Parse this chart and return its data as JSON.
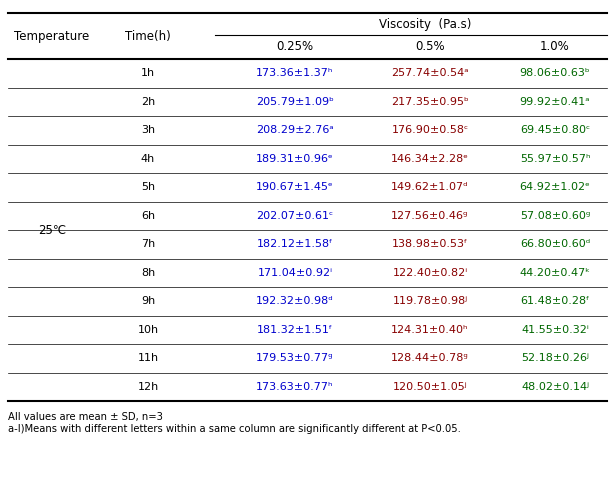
{
  "title_col1": "Temperature",
  "title_col2": "Time(h)",
  "viscosity_header": "Viscosity  (Pa.s)",
  "sub_headers": [
    "0.25%",
    "0.5%",
    "1.0%"
  ],
  "temp_label": "25℃",
  "time_labels": [
    "1h",
    "2h",
    "3h",
    "4h",
    "5h",
    "6h",
    "7h",
    "8h",
    "9h",
    "10h",
    "11h",
    "12h"
  ],
  "col_025": [
    "173.36±1.37ʰ",
    "205.79±1.09ᵇ",
    "208.29±2.76ᵃ",
    "189.31±0.96ᵉ",
    "190.67±1.45ᵉ",
    "202.07±0.61ᶜ",
    "182.12±1.58ᶠ",
    "171.04±0.92ⁱ",
    "192.32±0.98ᵈ",
    "181.32±1.51ᶠ",
    "179.53±0.77ᵍ",
    "173.63±0.77ʰ"
  ],
  "col_05": [
    "257.74±0.54ᵃ",
    "217.35±0.95ᵇ",
    "176.90±0.58ᶜ",
    "146.34±2.28ᵉ",
    "149.62±1.07ᵈ",
    "127.56±0.46ᵍ",
    "138.98±0.53ᶠ",
    "122.40±0.82ⁱ",
    "119.78±0.98ʲ",
    "124.31±0.40ʰ",
    "128.44±0.78ᵍ",
    "120.50±1.05ʲ"
  ],
  "col_10": [
    "98.06±0.63ᵇ",
    "99.92±0.41ᵃ",
    "69.45±0.80ᶜ",
    "55.97±0.57ʰ",
    "64.92±1.02ᵉ",
    "57.08±0.60ᵍ",
    "66.80±0.60ᵈ",
    "44.20±0.47ᵏ",
    "61.48±0.28ᶠ",
    "41.55±0.32ⁱ",
    "52.18±0.26ʲ",
    "48.02±0.14ʲ"
  ],
  "footnote1": "All values are mean ± SD, n=3",
  "footnote2": "a-l)Means with different letters within a same column are significantly different at P<0.05.",
  "text_color_025": "#0000CC",
  "text_color_05": "#880000",
  "text_color_10": "#006600",
  "bg_color": "#FFFFFF",
  "line_color": "#000000",
  "font_size_header": 8.5,
  "font_size_data": 8.0,
  "font_size_footnote": 7.2
}
